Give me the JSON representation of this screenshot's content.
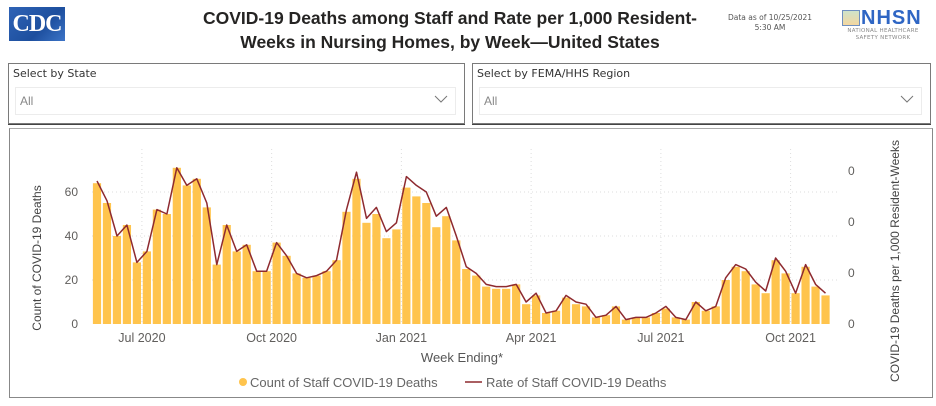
{
  "header": {
    "logo_text": "CDC",
    "title_line1": "COVID-19 Deaths among Staff and Rate per 1,000 Resident-",
    "title_line2": "Weeks in Nursing Homes, by Week—United States",
    "data_as_of_line1": "Data as of 10/25/2021",
    "data_as_of_line2": "5:30 AM",
    "nhsn_logo": "NHSN",
    "nhsn_sub_line1": "NATIONAL HEALTHCARE",
    "nhsn_sub_line2": "SAFETY NETWORK"
  },
  "filters": {
    "state": {
      "label": "Select by State",
      "value": "All",
      "icon": "chevron-down-icon"
    },
    "region": {
      "label": "Select by FEMA/HHS Region",
      "value": "All",
      "icon": "chevron-down-icon"
    }
  },
  "colors": {
    "bar": "#FFC44D",
    "line": "#8E2A2F",
    "grid": "#dddddd",
    "text": "#252423",
    "axis_text": "#605E5C"
  },
  "chart_data": {
    "type": "bar",
    "title": "COVID-19 Deaths among Staff and Rate per 1,000 Resident-Weeks in Nursing Homes, by Week—United States",
    "xlabel": "Week Ending*",
    "ylabel": "Count of COVID-19 Deaths",
    "y2label": "COVID-19 Deaths per 1,000 Resident-Weeks",
    "ylim": [
      0,
      75
    ],
    "yticks": [
      0,
      20,
      40,
      60
    ],
    "ytick_labels": [
      "0",
      "20",
      "40",
      "60"
    ],
    "y2tick_labels": [
      "0",
      "0",
      "0",
      "0"
    ],
    "grid": true,
    "legend_position": "bottom",
    "xtick_labels": [
      {
        "label": "Jul 2020",
        "index": 4.5
      },
      {
        "label": "Oct 2020",
        "index": 17.5
      },
      {
        "label": "Jan 2021",
        "index": 30.5
      },
      {
        "label": "Apr 2021",
        "index": 43.5
      },
      {
        "label": "Jul 2021",
        "index": 56.5
      },
      {
        "label": "Oct 2021",
        "index": 69.5
      }
    ],
    "series": [
      {
        "name": "Count of Staff COVID-19 Deaths",
        "kind": "bar",
        "values": [
          64,
          55,
          40,
          45,
          28,
          33,
          52,
          50,
          71,
          63,
          66,
          53,
          27,
          45,
          33,
          36,
          24,
          24,
          37,
          31,
          23,
          21,
          22,
          24,
          29,
          51,
          66,
          46,
          50,
          39,
          43,
          62,
          58,
          55,
          44,
          49,
          38,
          25,
          22,
          17,
          16,
          16,
          18,
          9,
          13,
          5,
          6,
          12,
          9,
          8,
          3,
          4,
          8,
          2,
          3,
          3,
          5,
          7,
          3,
          2,
          10,
          6,
          8,
          20,
          26,
          24,
          18,
          14,
          29,
          23,
          14,
          26,
          17,
          13
        ]
      },
      {
        "name": "Rate of Staff COVID-19 Deaths",
        "kind": "line",
        "axis": "right",
        "values": [
          65,
          56,
          40,
          45,
          28,
          33,
          52,
          50,
          71,
          63,
          66,
          55,
          27,
          45,
          33,
          36,
          24,
          24,
          37,
          31,
          23,
          21,
          22,
          24,
          29,
          52,
          69,
          48,
          53,
          42,
          46,
          67,
          63,
          60,
          49,
          53,
          40,
          26,
          23,
          18,
          17,
          17,
          18,
          10,
          14,
          5,
          6,
          13,
          10,
          9,
          3,
          4,
          8,
          2,
          3,
          3,
          5,
          8,
          3,
          2,
          10,
          6,
          8,
          21,
          27,
          25,
          19,
          15,
          30,
          24,
          14,
          27,
          18,
          14
        ]
      }
    ],
    "legend": [
      {
        "label": "Count of Staff COVID-19 Deaths",
        "marker": "dot"
      },
      {
        "label": "Rate of Staff COVID-19 Deaths",
        "marker": "line"
      }
    ]
  }
}
